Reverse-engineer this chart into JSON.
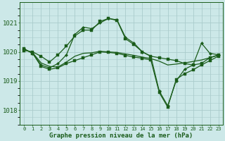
{
  "title": "Graphe pression niveau de la mer (hPa)",
  "bg_color": "#cce8e8",
  "grid_color": "#aacccc",
  "line_color": "#1a5c1a",
  "ylim": [
    1017.5,
    1021.7
  ],
  "yticks": [
    1018,
    1019,
    1020,
    1021
  ],
  "x": [
    0,
    1,
    2,
    3,
    4,
    5,
    6,
    7,
    8,
    9,
    10,
    11,
    12,
    13,
    14,
    15,
    16,
    17,
    18,
    19,
    20,
    21,
    22,
    23
  ],
  "line1_x": [
    0,
    1,
    2,
    3,
    4,
    5,
    6,
    7,
    8,
    9,
    10,
    11,
    12,
    13,
    14,
    15,
    16,
    17,
    18,
    19,
    20,
    21,
    22,
    23
  ],
  "line1_y": [
    1020.05,
    1020.0,
    1019.85,
    1019.65,
    1019.9,
    1020.2,
    1020.55,
    1020.75,
    1020.75,
    1021.05,
    1021.15,
    1021.08,
    1020.45,
    1020.25,
    1020.0,
    1019.85,
    1019.8,
    1019.75,
    1019.7,
    1019.6,
    1019.55,
    1019.6,
    1019.8,
    1019.9
  ],
  "line2_x": [
    0,
    1,
    2,
    3,
    4,
    5,
    6,
    7,
    8,
    9,
    10,
    11,
    12,
    13,
    14,
    15,
    16,
    17,
    18,
    19,
    20,
    21,
    22,
    23
  ],
  "line2_y": [
    1020.1,
    1019.95,
    1019.55,
    1019.45,
    1019.6,
    1019.9,
    1020.6,
    1020.85,
    1020.8,
    1021.0,
    1021.15,
    1021.1,
    1020.5,
    1020.3,
    1020.0,
    1019.85,
    1018.65,
    1018.15,
    1019.0,
    1019.4,
    1019.55,
    1020.3,
    1019.95,
    1019.9
  ],
  "line3_x": [
    0,
    1,
    2,
    3,
    4,
    5,
    6,
    7,
    8,
    9,
    10,
    11,
    12,
    13,
    14,
    15,
    16,
    17,
    18,
    19,
    20,
    21,
    22,
    23
  ],
  "line3_y": [
    1020.1,
    1019.95,
    1019.5,
    1019.4,
    1019.45,
    1019.6,
    1019.7,
    1019.8,
    1019.9,
    1020.0,
    1019.98,
    1019.95,
    1019.88,
    1019.82,
    1019.78,
    1019.72,
    1018.6,
    1018.1,
    1019.05,
    1019.25,
    1019.38,
    1019.55,
    1019.7,
    1019.85
  ],
  "line4_x": [
    0,
    1,
    2,
    3,
    4,
    5,
    6,
    7,
    8,
    9,
    10,
    11,
    12,
    13,
    14,
    15,
    16,
    17,
    18,
    19,
    20,
    21,
    22,
    23
  ],
  "line4_y": [
    1020.08,
    1019.97,
    1019.62,
    1019.5,
    1019.48,
    1019.65,
    1019.85,
    1019.95,
    1019.97,
    1020.02,
    1020.0,
    1019.98,
    1019.93,
    1019.88,
    1019.82,
    1019.77,
    1019.68,
    1019.55,
    1019.58,
    1019.62,
    1019.67,
    1019.72,
    1019.8,
    1019.88
  ]
}
